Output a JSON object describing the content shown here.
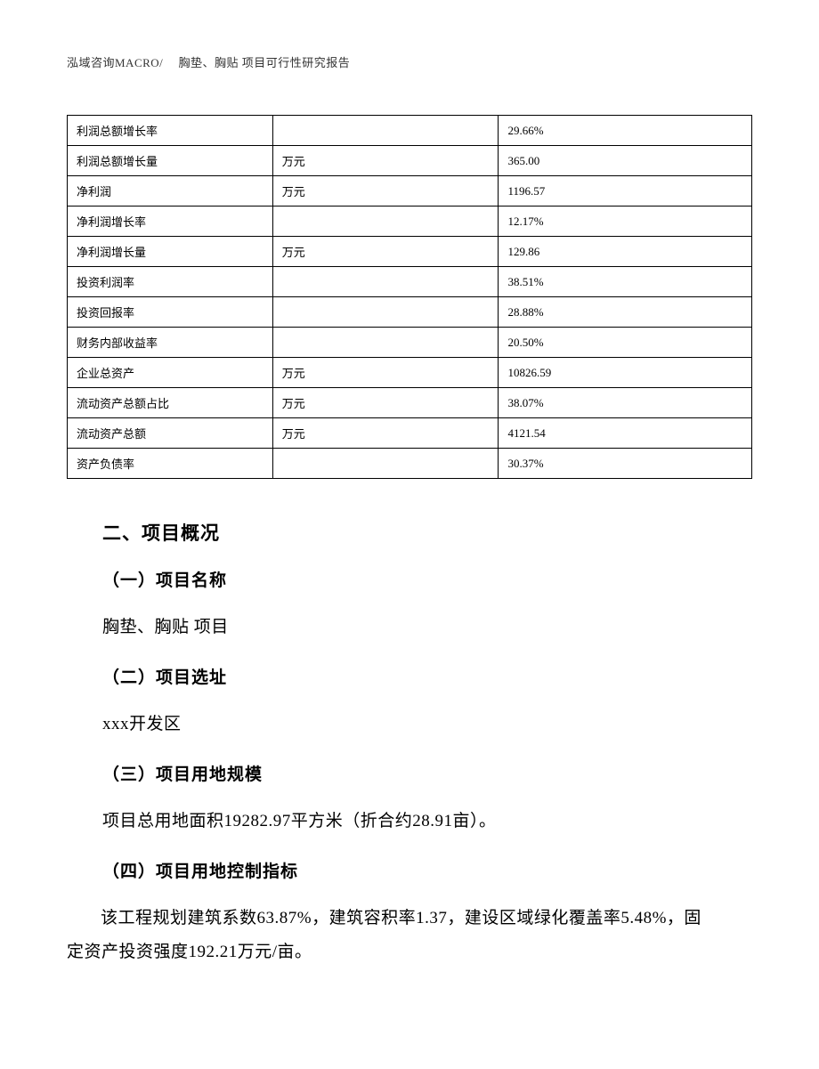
{
  "header": {
    "text": "泓域咨询MACRO/　 胸垫、胸贴 项目可行性研究报告"
  },
  "table": {
    "rows": [
      {
        "c1": "利润总额增长率",
        "c2": "",
        "c3": "29.66%"
      },
      {
        "c1": "利润总额增长量",
        "c2": "万元",
        "c3": "365.00"
      },
      {
        "c1": "净利润",
        "c2": "万元",
        "c3": "1196.57"
      },
      {
        "c1": "净利润增长率",
        "c2": "",
        "c3": "12.17%"
      },
      {
        "c1": "净利润增长量",
        "c2": "万元",
        "c3": "129.86"
      },
      {
        "c1": "投资利润率",
        "c2": "",
        "c3": "38.51%"
      },
      {
        "c1": "投资回报率",
        "c2": "",
        "c3": "28.88%"
      },
      {
        "c1": "财务内部收益率",
        "c2": "",
        "c3": "20.50%"
      },
      {
        "c1": "企业总资产",
        "c2": "万元",
        "c3": "10826.59"
      },
      {
        "c1": "流动资产总额占比",
        "c2": "万元",
        "c3": "38.07%"
      },
      {
        "c1": "流动资产总额",
        "c2": "万元",
        "c3": "4121.54"
      },
      {
        "c1": "资产负债率",
        "c2": "",
        "c3": "30.37%"
      }
    ]
  },
  "sections": {
    "main_title": "二、项目概况",
    "s1_title": "（一）项目名称",
    "s1_body": "胸垫、胸贴 项目",
    "s2_title": "（二）项目选址",
    "s2_body": "xxx开发区",
    "s3_title": "（三）项目用地规模",
    "s3_body": "项目总用地面积19282.97平方米（折合约28.91亩）。",
    "s4_title": "（四）项目用地控制指标",
    "s4_body": "该工程规划建筑系数63.87%，建筑容积率1.37，建设区域绿化覆盖率5.48%，固定资产投资强度192.21万元/亩。"
  }
}
